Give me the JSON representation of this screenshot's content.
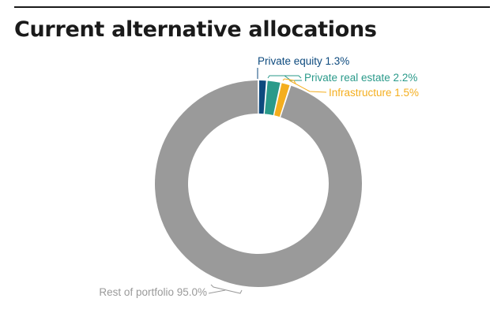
{
  "title": "Current alternative allocations",
  "chart_data": {
    "type": "pie",
    "variant": "donut",
    "title": "Current alternative allocations",
    "slices": [
      {
        "label": "Private equity 1.3%",
        "value": 1.3,
        "color": "#0d4a7e"
      },
      {
        "label": "Private real estate 2.2%",
        "value": 2.2,
        "color": "#2a9a8a"
      },
      {
        "label": "Infrastructure 1.5%",
        "value": 1.5,
        "color": "#f4ae1e"
      },
      {
        "label": "Rest of portfolio 95.0%",
        "value": 95.0,
        "color": "#9a9a9a"
      }
    ],
    "label_colors": [
      "#0d4a7e",
      "#2a9a8a",
      "#f4ae1e",
      "#9a9a9a"
    ]
  }
}
